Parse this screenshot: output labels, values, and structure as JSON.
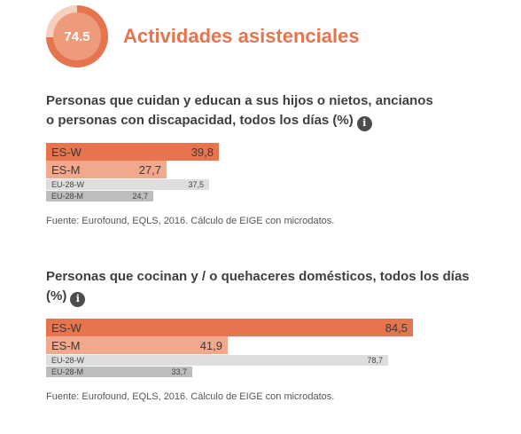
{
  "header": {
    "score": "74.5",
    "title": "Actividades asistenciales"
  },
  "colors": {
    "accent": "#e5744f",
    "es_w": "#e5744f",
    "es_m": "#f1a88c",
    "eu_w": "#dedede",
    "eu_m": "#bdbdbd"
  },
  "info_icon_glyph": "i",
  "chart_data": [
    {
      "type": "bar",
      "title": "Personas que cuidan y educan a sus hijos o nietos, ancianos o personas con discapacidad, todos los días (%)",
      "categories": [
        "ES-W",
        "ES-M",
        "EU-28-W",
        "EU-28-M"
      ],
      "values": [
        39.8,
        27.7,
        37.5,
        24.7
      ],
      "value_labels": [
        "39,8",
        "27,7",
        "37,5",
        "24,7"
      ],
      "xlim": [
        0,
        100
      ],
      "source": "Fuente: Eurofound, EQLS, 2016. Cálculo de EIGE con microdatos."
    },
    {
      "type": "bar",
      "title": "Personas que cocinan y / o quehaceres domésticos, todos los días (%)",
      "categories": [
        "ES-W",
        "ES-M",
        "EU-28-W",
        "EU-28-M"
      ],
      "values": [
        84.5,
        41.9,
        78.7,
        33.7
      ],
      "value_labels": [
        "84,5",
        "41,9",
        "78,7",
        "33,7"
      ],
      "xlim": [
        0,
        100
      ],
      "source": "Fuente: Eurofound, EQLS, 2016. Cálculo de EIGE con microdatos."
    }
  ]
}
